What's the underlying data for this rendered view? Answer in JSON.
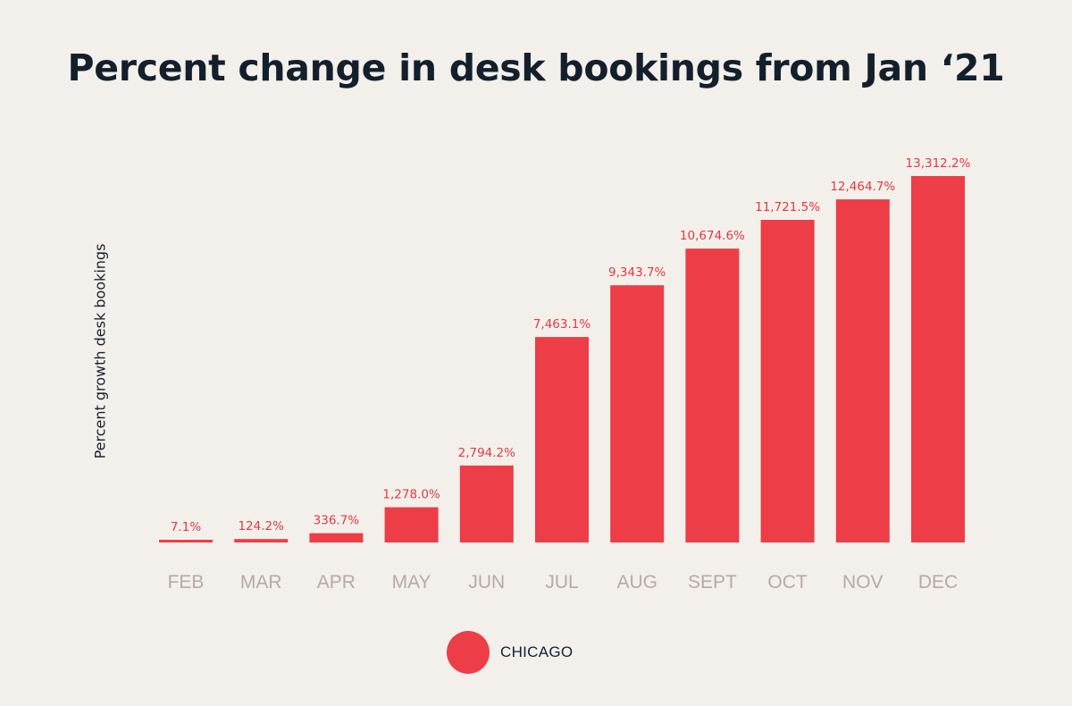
{
  "chart_data": {
    "type": "bar",
    "title": "Percent change in desk bookings from Jan ‘21",
    "ylabel": "Percent growth desk bookings",
    "xlabel": "",
    "categories": [
      "FEB",
      "MAR",
      "APR",
      "MAY",
      "JUN",
      "JUL",
      "AUG",
      "SEPT",
      "OCT",
      "NOV",
      "DEC"
    ],
    "series": [
      {
        "name": "CHICAGO",
        "values": [
          7.1,
          124.2,
          336.7,
          1278.0,
          2794.2,
          7463.1,
          9343.7,
          10674.6,
          11721.5,
          12464.7,
          13312.2
        ],
        "labels": [
          "7.1%",
          "124.2%",
          "336.7%",
          "1,278.0%",
          "2,794.2%",
          "7,463.1%",
          "9,343.7%",
          "10,674.6%",
          "11,721.5%",
          "12,464.7%",
          "13,312.2%"
        ]
      }
    ],
    "ylim": [
      0,
      13312.2
    ],
    "grid": false,
    "legend": "bottom-center",
    "colors": {
      "bar": "#ed3d46",
      "value_label": "#e03a44",
      "tick_label": "#b5aaa4",
      "text": "#13202c",
      "background": "#f3efeb"
    }
  }
}
